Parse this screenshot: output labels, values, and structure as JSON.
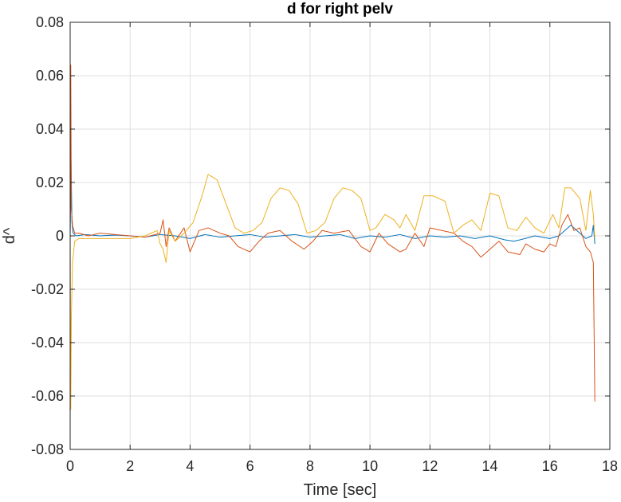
{
  "chart_data": {
    "type": "line",
    "title": "d for right pelv",
    "xlabel": "Time [sec]",
    "ylabel": "d^",
    "xlim": [
      0,
      18
    ],
    "ylim": [
      -0.08,
      0.08
    ],
    "xticks": [
      0,
      2,
      4,
      6,
      8,
      10,
      12,
      14,
      16,
      18
    ],
    "xtick_labels": [
      "0",
      "2",
      "4",
      "6",
      "8",
      "10",
      "12",
      "14",
      "16",
      "18"
    ],
    "yticks": [
      -0.08,
      -0.06,
      -0.04,
      -0.02,
      0,
      0.02,
      0.04,
      0.06,
      0.08
    ],
    "ytick_labels": [
      "-0.08",
      "-0.06",
      "-0.04",
      "-0.02",
      "0",
      "0.02",
      "0.04",
      "0.06",
      "0.08"
    ],
    "grid": true,
    "legend": "none",
    "series": [
      {
        "color": "#0072BD",
        "x": [
          0,
          0.03,
          0.06,
          0.1,
          0.2,
          0.5,
          1,
          1.5,
          2,
          2.5,
          3,
          3.5,
          4,
          4.5,
          5,
          5.5,
          6,
          6.5,
          7,
          7.5,
          8,
          8.5,
          9,
          9.5,
          10,
          10.5,
          11,
          11.5,
          12,
          12.5,
          13,
          13.5,
          14,
          14.5,
          14.8,
          15,
          15.5,
          16,
          16.3,
          16.5,
          16.7,
          17,
          17.2,
          17.4,
          17.45,
          17.5
        ],
        "y": [
          0.0,
          0.028,
          0.005,
          0.001,
          0.0,
          0.0005,
          0.0,
          0.0003,
          0.0,
          -0.0005,
          0.0005,
          0.0,
          -0.001,
          0.0005,
          -0.0005,
          0.0,
          0.0005,
          -0.0005,
          0.0,
          0.0005,
          -0.0005,
          0.0,
          0.0005,
          -0.001,
          0.0,
          -0.0005,
          0.0005,
          -0.001,
          0.0,
          -0.0005,
          0.0,
          -0.001,
          0.0,
          -0.0015,
          -0.002,
          -0.0015,
          0.0,
          -0.001,
          0.0,
          0.002,
          0.004,
          0.001,
          -0.001,
          0.0,
          0.004,
          -0.003
        ]
      },
      {
        "color": "#D95319",
        "x": [
          0,
          0.02,
          0.04,
          0.08,
          0.15,
          0.3,
          0.6,
          1,
          1.5,
          2,
          2.5,
          3,
          3.1,
          3.2,
          3.3,
          3.5,
          3.8,
          4.0,
          4.3,
          4.6,
          5,
          5.3,
          5.6,
          6,
          6.3,
          6.6,
          7,
          7.4,
          7.8,
          8.1,
          8.4,
          8.8,
          9.3,
          9.7,
          10,
          10.3,
          10.6,
          11,
          11.2,
          11.5,
          11.8,
          12,
          12.4,
          12.8,
          13.1,
          13.4,
          13.7,
          14,
          14.3,
          14.6,
          15,
          15.2,
          15.5,
          15.8,
          16.0,
          16.2,
          16.4,
          16.6,
          16.8,
          17,
          17.2,
          17.35,
          17.45,
          17.5
        ],
        "y": [
          0.0,
          0.064,
          0.01,
          0.004,
          0.001,
          0.001,
          0.0,
          0.001,
          0.0005,
          0.0,
          -0.0005,
          0.001,
          0.006,
          -0.004,
          0.003,
          -0.002,
          0.003,
          -0.006,
          0.002,
          0.003,
          0.001,
          0.0,
          -0.004,
          -0.006,
          -0.002,
          0.001,
          0.002,
          -0.002,
          -0.005,
          -0.002,
          0.002,
          0.001,
          0.002,
          -0.004,
          -0.006,
          0.001,
          -0.003,
          -0.006,
          -0.005,
          0.001,
          -0.004,
          0.003,
          0.002,
          0.001,
          -0.002,
          -0.004,
          -0.008,
          -0.005,
          -0.002,
          -0.006,
          -0.007,
          -0.003,
          -0.005,
          -0.006,
          -0.003,
          -0.004,
          0.004,
          0.008,
          0.002,
          0.003,
          -0.004,
          -0.006,
          -0.01,
          -0.062
        ]
      },
      {
        "color": "#EDB120",
        "x": [
          0,
          0.02,
          0.04,
          0.08,
          0.15,
          0.3,
          1,
          2,
          2.5,
          2.9,
          3.0,
          3.1,
          3.2,
          3.3,
          3.5,
          3.8,
          4.1,
          4.4,
          4.6,
          4.9,
          5.2,
          5.5,
          5.8,
          6.1,
          6.4,
          6.7,
          7.0,
          7.3,
          7.6,
          7.9,
          8.2,
          8.5,
          8.8,
          9.1,
          9.4,
          9.7,
          10.0,
          10.2,
          10.5,
          10.8,
          11.0,
          11.2,
          11.5,
          11.8,
          12.1,
          12.5,
          12.8,
          13.1,
          13.4,
          13.7,
          14.0,
          14.3,
          14.6,
          14.9,
          15.2,
          15.5,
          15.8,
          16.1,
          16.3,
          16.5,
          16.7,
          17.0,
          17.2,
          17.35,
          17.45,
          17.5
        ],
        "y": [
          0.0,
          -0.065,
          -0.03,
          -0.01,
          -0.002,
          -0.001,
          -0.001,
          -0.001,
          0.0,
          0.002,
          -0.003,
          -0.005,
          -0.01,
          0.002,
          -0.002,
          0.001,
          0.005,
          0.015,
          0.023,
          0.021,
          0.012,
          0.003,
          0.001,
          0.002,
          0.005,
          0.014,
          0.018,
          0.017,
          0.012,
          0.001,
          0.002,
          0.005,
          0.014,
          0.018,
          0.017,
          0.014,
          0.002,
          0.003,
          0.008,
          0.006,
          0.003,
          0.008,
          0.002,
          0.015,
          0.015,
          0.013,
          0.001,
          0.004,
          0.006,
          0.002,
          0.016,
          0.015,
          0.003,
          0.002,
          0.007,
          0.003,
          0.001,
          0.008,
          0.003,
          0.018,
          0.018,
          0.014,
          0.002,
          0.017,
          0.008,
          -0.001
        ]
      }
    ]
  }
}
